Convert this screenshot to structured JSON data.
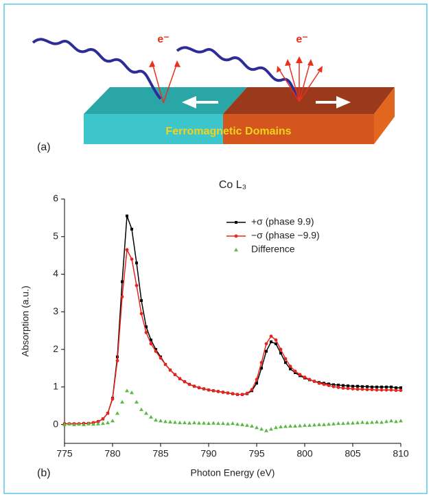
{
  "diagram": {
    "electron_labels": [
      "e⁻",
      "e⁻"
    ],
    "domain_label": "Ferromagnetic Domains",
    "panel_labels": [
      "(a)",
      "(b)"
    ]
  },
  "chart_data": {
    "type": "line",
    "title": "Co L₃",
    "x_label": "Photon Energy (eV)",
    "y_label": "Absorption (a.u.)",
    "x": [
      775,
      775.5,
      776,
      776.5,
      777,
      777.5,
      778,
      778.5,
      779,
      779.5,
      780,
      780.5,
      781,
      781.5,
      782,
      782.5,
      783,
      783.5,
      784,
      784.5,
      785,
      785.5,
      786,
      786.5,
      787,
      787.5,
      788,
      788.5,
      789,
      789.5,
      790,
      790.5,
      791,
      791.5,
      792,
      792.5,
      793,
      793.5,
      794,
      794.5,
      795,
      795.5,
      796,
      796.5,
      797,
      797.5,
      798,
      798.5,
      799,
      799.5,
      800,
      800.5,
      801,
      801.5,
      802,
      802.5,
      803,
      803.5,
      804,
      804.5,
      805,
      805.5,
      806,
      806.5,
      807,
      807.5,
      808,
      808.5,
      809,
      809.5,
      810
    ],
    "series": [
      {
        "name": "+σ (phase 9.9)",
        "color": "#000000",
        "marker": "square",
        "line": true,
        "values": [
          0.02,
          0.02,
          0.02,
          0.02,
          0.03,
          0.03,
          0.05,
          0.08,
          0.15,
          0.3,
          0.7,
          1.8,
          3.8,
          5.55,
          5.2,
          4.3,
          3.3,
          2.6,
          2.25,
          2.0,
          1.8,
          1.6,
          1.45,
          1.33,
          1.22,
          1.14,
          1.07,
          1.02,
          0.98,
          0.95,
          0.92,
          0.9,
          0.88,
          0.86,
          0.84,
          0.82,
          0.8,
          0.8,
          0.82,
          0.9,
          1.1,
          1.5,
          1.95,
          2.2,
          2.15,
          1.9,
          1.65,
          1.48,
          1.38,
          1.3,
          1.24,
          1.19,
          1.15,
          1.12,
          1.1,
          1.08,
          1.06,
          1.05,
          1.04,
          1.03,
          1.02,
          1.02,
          1.01,
          1.01,
          1.0,
          1.0,
          1.0,
          1.0,
          1.0,
          0.98,
          0.98
        ]
      },
      {
        "name": "−σ (phase −9.9)",
        "color": "#e8231c",
        "marker": "circle",
        "line": true,
        "values": [
          0.02,
          0.02,
          0.02,
          0.02,
          0.03,
          0.03,
          0.05,
          0.08,
          0.15,
          0.3,
          0.68,
          1.7,
          3.4,
          4.65,
          4.4,
          3.7,
          2.95,
          2.45,
          2.15,
          1.95,
          1.77,
          1.6,
          1.45,
          1.33,
          1.22,
          1.14,
          1.07,
          1.02,
          0.98,
          0.95,
          0.92,
          0.9,
          0.88,
          0.86,
          0.84,
          0.82,
          0.8,
          0.8,
          0.83,
          0.93,
          1.2,
          1.65,
          2.15,
          2.35,
          2.25,
          2.0,
          1.75,
          1.55,
          1.42,
          1.33,
          1.26,
          1.2,
          1.15,
          1.1,
          1.07,
          1.04,
          1.01,
          0.99,
          0.97,
          0.96,
          0.95,
          0.94,
          0.94,
          0.93,
          0.93,
          0.92,
          0.92,
          0.92,
          0.92,
          0.91,
          0.91
        ]
      },
      {
        "name": "Difference",
        "color": "#5cb846",
        "marker": "triangle",
        "line": false,
        "values": [
          0.0,
          0.02,
          0.0,
          0.01,
          0.0,
          0.02,
          0.01,
          0.02,
          0.03,
          0.05,
          0.1,
          0.3,
          0.6,
          0.9,
          0.85,
          0.6,
          0.4,
          0.3,
          0.2,
          0.12,
          0.1,
          0.08,
          0.07,
          0.06,
          0.05,
          0.05,
          0.04,
          0.05,
          0.04,
          0.04,
          0.03,
          0.04,
          0.03,
          0.03,
          0.02,
          0.03,
          0.01,
          0.0,
          -0.02,
          -0.04,
          -0.08,
          -0.12,
          -0.16,
          -0.12,
          -0.08,
          -0.06,
          -0.05,
          -0.04,
          -0.04,
          -0.03,
          -0.02,
          -0.02,
          -0.01,
          0.0,
          0.0,
          0.01,
          0.02,
          0.03,
          0.03,
          0.04,
          0.04,
          0.05,
          0.06,
          0.05,
          0.06,
          0.07,
          0.06,
          0.08,
          0.1,
          0.08,
          0.1
        ]
      }
    ],
    "xlim": [
      775,
      810
    ],
    "xticks": [
      775,
      780,
      785,
      790,
      795,
      800,
      805,
      810
    ],
    "ylim": [
      -0.5,
      6
    ],
    "yticks": [
      0,
      1,
      2,
      3,
      4,
      5,
      6
    ],
    "legend": "upper right",
    "grid": false
  }
}
